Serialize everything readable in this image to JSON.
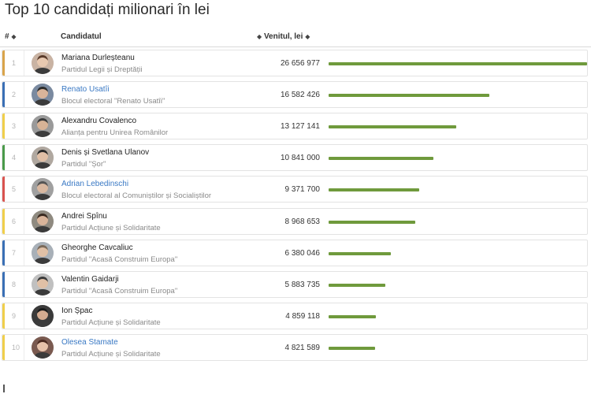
{
  "page": {
    "title": "Top 10 candidați milionari în lei"
  },
  "table": {
    "columns": {
      "rank": "#",
      "candidate": "Candidatul",
      "income": "Venitul, lei",
      "sort_icon": "◆"
    }
  },
  "chart_data": {
    "type": "bar",
    "orientation": "horizontal",
    "title": "Top 10 candidați milionari în lei",
    "xlabel": "Venitul, lei",
    "ylabel": "",
    "xlim": [
      0,
      26656977
    ],
    "grid": false,
    "categories": [
      "Mariana Durleșteanu",
      "Renato Usatîi",
      "Alexandru Covalenco",
      "Denis și Svetlana Ulanov",
      "Adrian Lebedinschi",
      "Andrei Spînu",
      "Gheorghe Cavcaliuc",
      "Valentin Gaidarji",
      "Ion Șpac",
      "Olesea Stamate"
    ],
    "values": [
      26656977,
      16582426,
      13127141,
      10841000,
      9371700,
      8968653,
      6380046,
      5883735,
      4859118,
      4821589
    ],
    "series": [
      {
        "values": [
          26656977,
          16582426,
          13127141,
          10841000,
          9371700,
          8968653,
          6380046,
          5883735,
          4859118,
          4821589
        ]
      }
    ]
  },
  "rows": [
    {
      "rank": "1",
      "name": "Mariana Durleșteanu",
      "party": "Partidul Legii și Dreptății",
      "income": "26 656 977",
      "value": 26656977,
      "stripe": "#d9a44a",
      "link": false,
      "avatar_bg": "#c9b3a3",
      "face": "#e8c9b0",
      "hair": "#5a3b2a"
    },
    {
      "rank": "2",
      "name": "Renato Usatîi",
      "party": "Blocul electoral \"Renato Usatîi\"",
      "income": "16 582 426",
      "value": 16582426,
      "stripe": "#3a6fb5",
      "link": true,
      "avatar_bg": "#7a8aa0",
      "face": "#d9b49a",
      "hair": "#2c2c2c"
    },
    {
      "rank": "3",
      "name": "Alexandru Covalenco",
      "party": "Alianța pentru Unirea Românilor",
      "income": "13 127 141",
      "value": 13127141,
      "stripe": "#f0cf4a",
      "link": false,
      "avatar_bg": "#9a9a9a",
      "face": "#d8b396",
      "hair": "#3a3a3a"
    },
    {
      "rank": "4",
      "name": "Denis și Svetlana Ulanov",
      "party": "Partidul \"Șor\"",
      "income": "10 841 000",
      "value": 10841000,
      "stripe": "#4a9a4a",
      "link": false,
      "avatar_bg": "#b0a8a0",
      "face": "#e0bfa6",
      "hair": "#2a2a2a"
    },
    {
      "rank": "5",
      "name": "Adrian Lebedinschi",
      "party": "Blocul electoral al Comuniștilor și Socialiștilor",
      "income": "9 371 700",
      "value": 9371700,
      "stripe": "#d9534f",
      "link": true,
      "avatar_bg": "#a0a0a0",
      "face": "#d9b8a0",
      "hair": "#555555"
    },
    {
      "rank": "6",
      "name": "Andrei Spînu",
      "party": "Partidul Acțiune și Solidaritate",
      "income": "8 968 653",
      "value": 8968653,
      "stripe": "#f0cf4a",
      "link": false,
      "avatar_bg": "#8f8a80",
      "face": "#d9b49a",
      "hair": "#3a2a20"
    },
    {
      "rank": "7",
      "name": "Gheorghe Cavcaliuc",
      "party": "Partidul \"Acasă Construim Europa\"",
      "income": "6 380 046",
      "value": 6380046,
      "stripe": "#3a6fb5",
      "link": false,
      "avatar_bg": "#a8b0b8",
      "face": "#e0c0a6",
      "hair": "#7a6a5a"
    },
    {
      "rank": "8",
      "name": "Valentin Gaidarji",
      "party": "Partidul \"Acasă Construim Europa\"",
      "income": "5 883 735",
      "value": 5883735,
      "stripe": "#3a6fb5",
      "link": false,
      "avatar_bg": "#c0c0c0",
      "face": "#e0c0a6",
      "hair": "#3a3a3a"
    },
    {
      "rank": "9",
      "name": "Ion Șpac",
      "party": "Partidul Acțiune și Solidaritate",
      "income": "4 859 118",
      "value": 4859118,
      "stripe": "#f0cf4a",
      "link": false,
      "avatar_bg": "#3a3a3a",
      "face": "#d4ab90",
      "hair": "#1a1a1a"
    },
    {
      "rank": "10",
      "name": "Olesea Stamate",
      "party": "Partidul Acțiune și Solidaritate",
      "income": "4 821 589",
      "value": 4821589,
      "stripe": "#f0cf4a",
      "link": true,
      "avatar_bg": "#7a5a50",
      "face": "#e6c2aa",
      "hair": "#4a2a20"
    }
  ]
}
